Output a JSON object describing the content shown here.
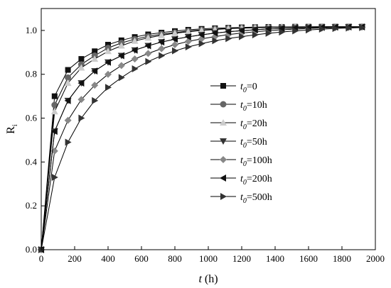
{
  "chart_data": {
    "type": "line",
    "xlabel_italic": "t",
    "xlabel_rest": " (h)",
    "ylabel_main": "R",
    "ylabel_sub": "i",
    "xlim": [
      0,
      2000
    ],
    "ylim": [
      0,
      1.1
    ],
    "xticks": [
      0,
      200,
      400,
      600,
      800,
      1000,
      1200,
      1400,
      1600,
      1800,
      2000
    ],
    "yticks": [
      0.0,
      0.2,
      0.4,
      0.6,
      0.8,
      1.0
    ],
    "ytick_labels": [
      "0.0",
      "0.2",
      "0.4",
      "0.6",
      "0.8",
      "1.0"
    ],
    "grid": false,
    "legend_position": "center-right",
    "series": [
      {
        "name": "t0=0",
        "legend_prefix": "t",
        "legend_sub": "0",
        "legend_suffix": "=0",
        "marker": "square",
        "color": "#111111",
        "x": [
          0,
          80,
          160,
          240,
          320,
          400,
          480,
          560,
          640,
          720,
          800,
          880,
          960,
          1040,
          1120,
          1200,
          1280,
          1360,
          1440,
          1520,
          1600,
          1680,
          1760,
          1840,
          1920
        ],
        "y": [
          0.0,
          0.7,
          0.82,
          0.87,
          0.905,
          0.935,
          0.955,
          0.97,
          0.982,
          0.99,
          0.997,
          1.003,
          1.007,
          1.01,
          1.012,
          1.014,
          1.015,
          1.016,
          1.016,
          1.017,
          1.017,
          1.017,
          1.017,
          1.017,
          1.017
        ]
      },
      {
        "name": "t0=10h",
        "legend_prefix": "t",
        "legend_sub": "0",
        "legend_suffix": "=10h",
        "marker": "circle",
        "color": "#666666",
        "x": [
          0,
          80,
          160,
          240,
          320,
          400,
          480,
          560,
          640,
          720,
          800,
          880,
          960,
          1040,
          1120,
          1200,
          1280,
          1360,
          1440,
          1520,
          1600,
          1680,
          1760,
          1840,
          1920
        ],
        "y": [
          0.0,
          0.66,
          0.785,
          0.845,
          0.885,
          0.92,
          0.943,
          0.96,
          0.973,
          0.983,
          0.99,
          0.997,
          1.002,
          1.006,
          1.009,
          1.011,
          1.013,
          1.014,
          1.015,
          1.016,
          1.016,
          1.017,
          1.017,
          1.017,
          1.017
        ]
      },
      {
        "name": "t0=20h",
        "legend_prefix": "t",
        "legend_sub": "0",
        "legend_suffix": "=20h",
        "marker": "triangle-up",
        "color": "#cccccc",
        "x": [
          0,
          80,
          160,
          240,
          320,
          400,
          480,
          560,
          640,
          720,
          800,
          880,
          960,
          1040,
          1120,
          1200,
          1280,
          1360,
          1440,
          1520,
          1600,
          1680,
          1760,
          1840,
          1920
        ],
        "y": [
          0.0,
          0.63,
          0.76,
          0.83,
          0.87,
          0.905,
          0.93,
          0.952,
          0.966,
          0.978,
          0.987,
          0.994,
          1.0,
          1.004,
          1.008,
          1.01,
          1.012,
          1.014,
          1.015,
          1.016,
          1.016,
          1.017,
          1.017,
          1.017,
          1.017
        ]
      },
      {
        "name": "t0=50h",
        "legend_prefix": "t",
        "legend_sub": "0",
        "legend_suffix": "=50h",
        "marker": "triangle-down",
        "color": "#333333",
        "x": [
          0,
          80,
          160,
          240,
          320,
          400,
          480,
          560,
          640,
          720,
          800,
          880,
          960,
          1040,
          1120,
          1200,
          1280,
          1360,
          1440,
          1520,
          1600,
          1680,
          1760,
          1840,
          1920
        ],
        "y": [
          0.0,
          0.54,
          0.68,
          0.76,
          0.815,
          0.855,
          0.885,
          0.91,
          0.93,
          0.947,
          0.96,
          0.971,
          0.98,
          0.988,
          0.994,
          0.999,
          1.003,
          1.007,
          1.009,
          1.011,
          1.013,
          1.014,
          1.015,
          1.016,
          1.016
        ]
      },
      {
        "name": "t0=100h",
        "legend_prefix": "t",
        "legend_sub": "0",
        "legend_suffix": "=100h",
        "marker": "diamond",
        "color": "#888888",
        "x": [
          0,
          80,
          160,
          240,
          320,
          400,
          480,
          560,
          640,
          720,
          800,
          880,
          960,
          1040,
          1120,
          1200,
          1280,
          1360,
          1440,
          1520,
          1600,
          1680,
          1760,
          1840,
          1920
        ],
        "y": [
          0.0,
          0.45,
          0.59,
          0.685,
          0.75,
          0.8,
          0.84,
          0.87,
          0.895,
          0.917,
          0.935,
          0.95,
          0.962,
          0.972,
          0.981,
          0.988,
          0.994,
          0.999,
          1.003,
          1.006,
          1.009,
          1.011,
          1.013,
          1.014,
          1.015
        ]
      },
      {
        "name": "t0=200h",
        "legend_prefix": "t",
        "legend_sub": "0",
        "legend_suffix": "=200h",
        "marker": "triangle-left",
        "color": "#111111",
        "x": [
          0,
          80,
          160,
          240,
          320,
          400,
          480,
          560,
          640,
          720,
          800,
          880,
          960,
          1040,
          1120,
          1200,
          1280,
          1360,
          1440,
          1520,
          1600,
          1680,
          1760,
          1840,
          1920
        ],
        "y": [
          0.0,
          0.54,
          0.68,
          0.76,
          0.815,
          0.855,
          0.885,
          0.91,
          0.93,
          0.947,
          0.96,
          0.971,
          0.98,
          0.988,
          0.994,
          0.999,
          1.003,
          1.007,
          1.009,
          1.011,
          1.013,
          1.014,
          1.015,
          1.016,
          1.016
        ]
      },
      {
        "name": "t0=500h",
        "legend_prefix": "t",
        "legend_sub": "0",
        "legend_suffix": "=500h",
        "marker": "triangle-right",
        "color": "#333333",
        "x": [
          0,
          80,
          160,
          240,
          320,
          400,
          480,
          560,
          640,
          720,
          800,
          880,
          960,
          1040,
          1120,
          1200,
          1280,
          1360,
          1440,
          1520,
          1600,
          1680,
          1760,
          1840,
          1920
        ],
        "y": [
          0.0,
          0.33,
          0.49,
          0.6,
          0.68,
          0.74,
          0.785,
          0.825,
          0.858,
          0.885,
          0.907,
          0.925,
          0.94,
          0.953,
          0.963,
          0.972,
          0.98,
          0.987,
          0.993,
          0.998,
          1.002,
          1.006,
          1.009,
          1.011,
          1.013
        ]
      }
    ]
  }
}
